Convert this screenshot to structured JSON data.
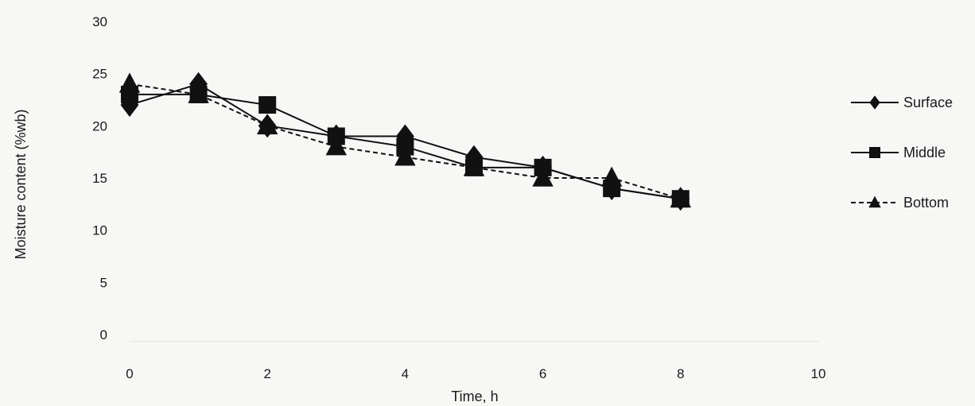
{
  "chart_data": {
    "type": "line",
    "title": "",
    "xlabel": "Time, h",
    "ylabel": "Moisture content (%wb)",
    "xlim": [
      0,
      10
    ],
    "ylim": [
      0,
      30
    ],
    "xticks": [
      0,
      2,
      4,
      6,
      8,
      10
    ],
    "yticks": [
      0,
      5,
      10,
      15,
      20,
      25,
      30
    ],
    "grid": false,
    "legend_position": "right",
    "series": [
      {
        "name": "Surface",
        "marker": "diamond",
        "line": "solid",
        "x": [
          0,
          1,
          2,
          3,
          4,
          5,
          6,
          7,
          8
        ],
        "y": [
          22,
          24,
          20,
          19,
          19,
          17,
          16,
          14,
          13
        ]
      },
      {
        "name": "Middle",
        "marker": "square",
        "line": "solid",
        "x": [
          0,
          1,
          2,
          3,
          4,
          5,
          6,
          7,
          8
        ],
        "y": [
          23,
          23,
          22,
          19,
          18,
          16,
          16,
          14,
          13
        ]
      },
      {
        "name": "Bottom",
        "marker": "triangle",
        "line": "dashed",
        "x": [
          0,
          1,
          2,
          3,
          4,
          5,
          6,
          7,
          8
        ],
        "y": [
          24,
          23,
          20,
          18,
          17,
          16,
          15,
          15,
          13
        ]
      }
    ]
  },
  "colors": {
    "ink": "#111111",
    "background": "#f7f7f5"
  }
}
